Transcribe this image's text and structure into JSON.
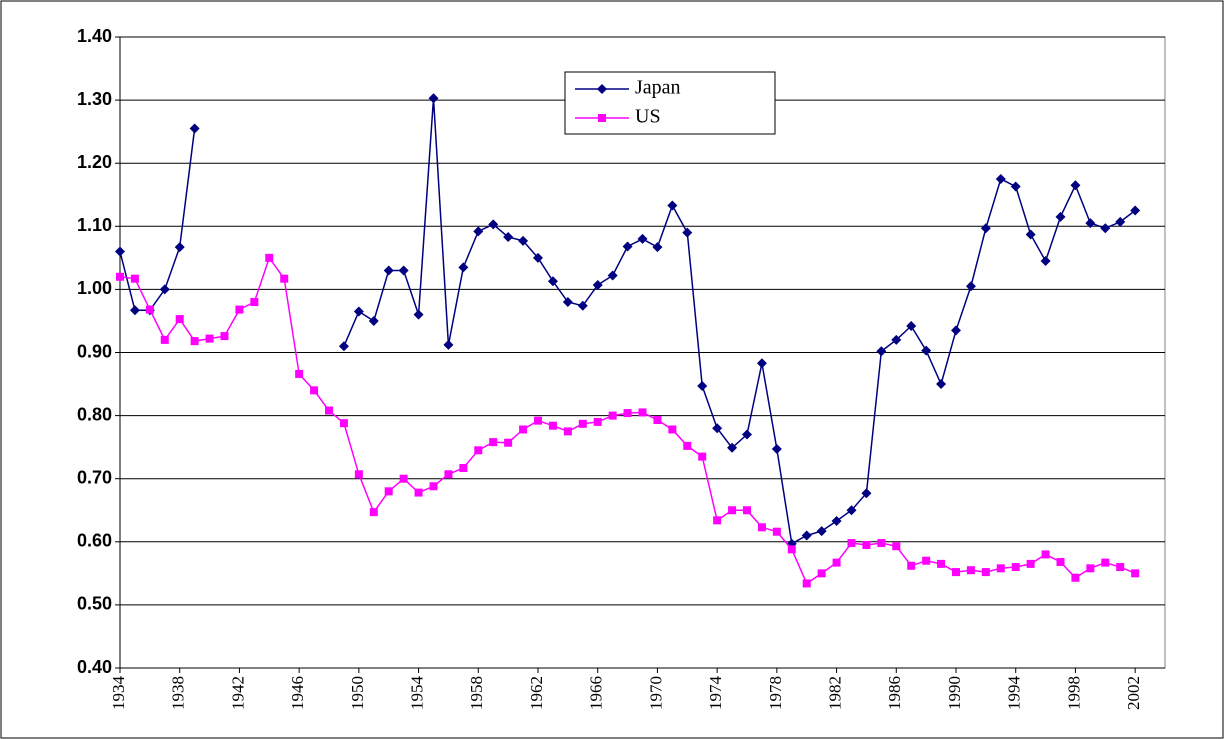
{
  "chart_data": {
    "type": "line",
    "x": [
      1934,
      1935,
      1936,
      1937,
      1938,
      1939,
      1940,
      1941,
      1942,
      1943,
      1944,
      1945,
      1946,
      1947,
      1948,
      1949,
      1950,
      1951,
      1952,
      1953,
      1954,
      1955,
      1956,
      1957,
      1958,
      1959,
      1960,
      1961,
      1962,
      1963,
      1964,
      1965,
      1966,
      1967,
      1968,
      1969,
      1970,
      1971,
      1972,
      1973,
      1974,
      1975,
      1976,
      1977,
      1978,
      1979,
      1980,
      1981,
      1982,
      1983,
      1984,
      1985,
      1986,
      1987,
      1988,
      1989,
      1990,
      1991,
      1992,
      1993,
      1994,
      1995,
      1996,
      1997,
      1998,
      1999,
      2000,
      2001,
      2002
    ],
    "series": [
      {
        "name": "Japan",
        "color": "#000080",
        "marker": "diamond",
        "values": [
          1.06,
          0.967,
          0.967,
          1.0,
          1.067,
          1.255,
          null,
          null,
          null,
          null,
          null,
          null,
          null,
          null,
          null,
          0.91,
          0.965,
          0.95,
          1.03,
          1.03,
          0.96,
          1.303,
          0.912,
          1.035,
          1.092,
          1.103,
          1.083,
          1.077,
          1.05,
          1.013,
          0.98,
          0.974,
          1.007,
          1.022,
          1.068,
          1.08,
          1.067,
          1.133,
          1.09,
          0.847,
          0.78,
          0.749,
          0.77,
          0.883,
          0.747,
          0.597,
          0.61,
          0.617,
          0.633,
          0.65,
          0.677,
          0.902,
          0.92,
          0.942,
          0.903,
          0.85,
          0.935,
          1.005,
          1.097,
          1.175,
          1.163,
          1.087,
          1.045,
          1.115,
          1.165,
          1.105,
          1.097,
          1.107,
          1.125
        ]
      },
      {
        "name": "US",
        "color": "#ff00ff",
        "marker": "square",
        "values": [
          1.02,
          1.017,
          0.968,
          0.92,
          0.953,
          0.918,
          0.922,
          0.926,
          0.968,
          0.98,
          1.05,
          1.017,
          0.866,
          0.84,
          0.808,
          0.788,
          0.707,
          0.647,
          0.68,
          0.7,
          0.678,
          0.688,
          0.707,
          0.717,
          0.745,
          0.758,
          0.757,
          0.778,
          0.792,
          0.784,
          0.775,
          0.787,
          0.79,
          0.8,
          0.804,
          0.805,
          0.793,
          0.778,
          0.752,
          0.735,
          0.634,
          0.65,
          0.65,
          0.623,
          0.616,
          0.588,
          0.534,
          0.55,
          0.567,
          0.598,
          0.595,
          0.598,
          0.593,
          0.562,
          0.57,
          0.565,
          0.552,
          0.555,
          0.552,
          0.558,
          0.56,
          0.565,
          0.58,
          0.568,
          0.543,
          0.558,
          0.567,
          0.56,
          0.55
        ]
      }
    ],
    "xlim": [
      1934,
      2004
    ],
    "xticks": [
      1934,
      1938,
      1942,
      1946,
      1950,
      1954,
      1958,
      1962,
      1966,
      1970,
      1974,
      1978,
      1982,
      1986,
      1990,
      1994,
      1998,
      2002
    ],
    "ylim": [
      0.4,
      1.4
    ],
    "yticks": [
      {
        "value": 0.4,
        "label": "0.40"
      },
      {
        "value": 0.5,
        "label": "0.50"
      },
      {
        "value": 0.6,
        "label": "0.60"
      },
      {
        "value": 0.7,
        "label": "0.70"
      },
      {
        "value": 0.8,
        "label": "0.80"
      },
      {
        "value": 0.9,
        "label": "0.90"
      },
      {
        "value": 1.0,
        "label": "1.00"
      },
      {
        "value": 1.1,
        "label": "1.10"
      },
      {
        "value": 1.2,
        "label": "1.20"
      },
      {
        "value": 1.3,
        "label": "1.30"
      },
      {
        "value": 1.4,
        "label": "1.40"
      }
    ],
    "grid": true
  }
}
